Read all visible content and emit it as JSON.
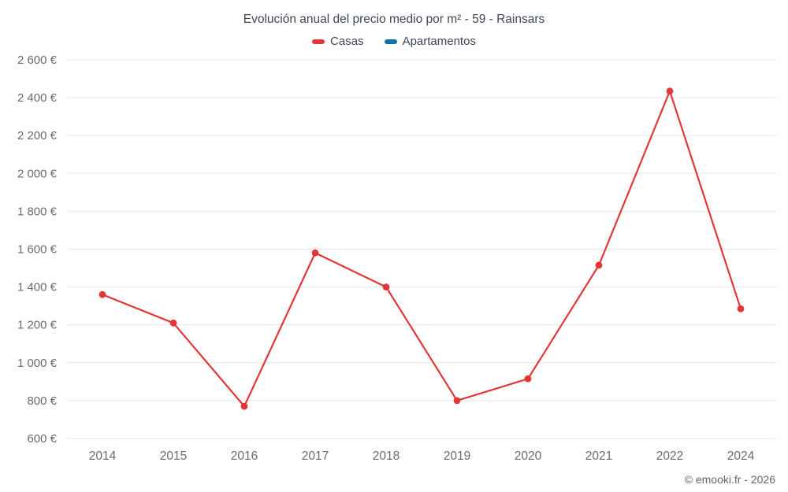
{
  "title": "Evolución anual del precio medio por m² - 59 - Rainsars",
  "legend": [
    {
      "label": "Casas",
      "color": "#e13737"
    },
    {
      "label": "Apartamentos",
      "color": "#1170aa"
    }
  ],
  "footer": "© emooki.fr - 2026",
  "chart_data": {
    "type": "line",
    "title": "Evolución anual del precio medio por m² - 59 - Rainsars",
    "categories": [
      "2014",
      "2015",
      "2016",
      "2017",
      "2018",
      "2019",
      "2020",
      "2021",
      "2022",
      "2024"
    ],
    "series": [
      {
        "name": "Casas",
        "color": "#e13737",
        "values": [
          1360,
          1210,
          770,
          1580,
          1400,
          800,
          915,
          1515,
          2435,
          1285
        ]
      },
      {
        "name": "Apartamentos",
        "color": "#1170aa",
        "values": []
      }
    ],
    "xlabel": "",
    "ylabel": "",
    "ylim": [
      600,
      2600
    ],
    "ytick_step": 200,
    "ytick_suffix": " €",
    "grid": true,
    "legend_position": "top",
    "grid_color": "#e6e6e6",
    "tick_label_color": "#646c76"
  }
}
